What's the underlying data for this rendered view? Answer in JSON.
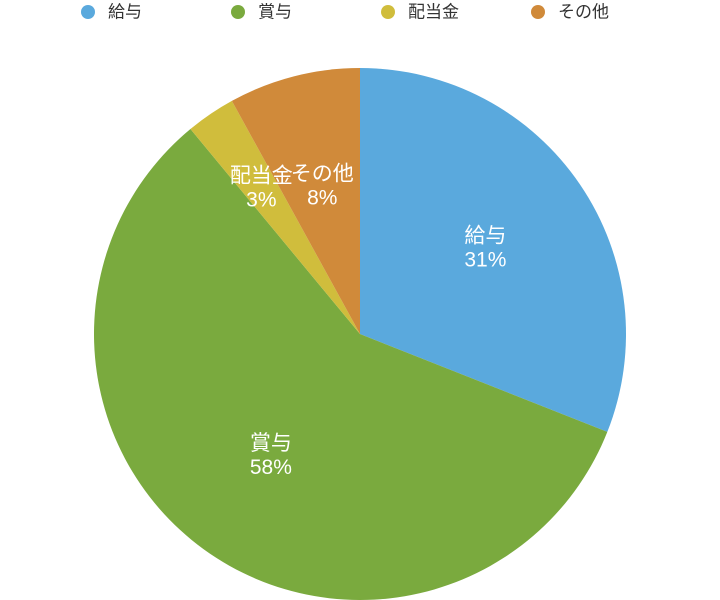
{
  "chart_data": {
    "type": "pie",
    "categories": [
      "給与",
      "賞与",
      "配当金",
      "その他"
    ],
    "values": [
      31,
      58,
      3,
      8
    ],
    "value_labels": [
      "31%",
      "58%",
      "3%",
      "8%"
    ],
    "colors": [
      "#5aa9dd",
      "#7aaa3e",
      "#d0bd3c",
      "#d08a3a"
    ],
    "legend": "top"
  }
}
